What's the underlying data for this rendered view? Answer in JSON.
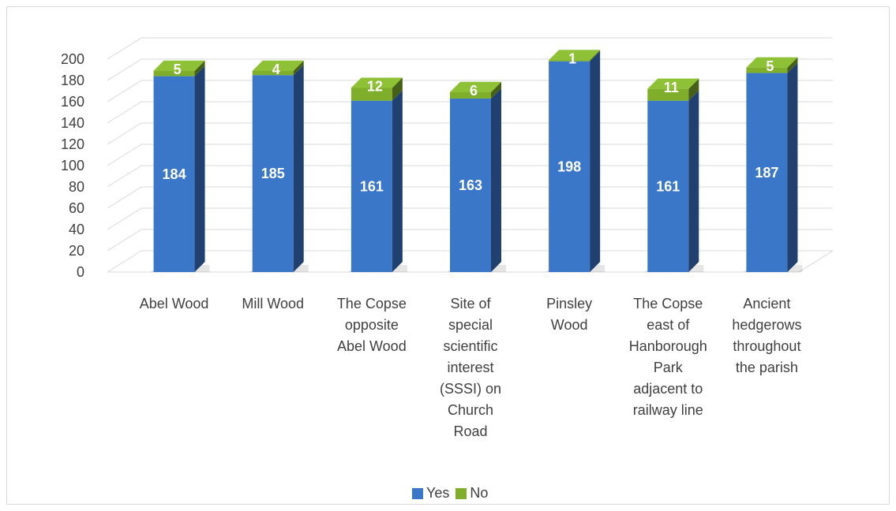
{
  "chart_data": {
    "type": "bar",
    "stacked": true,
    "three_d": true,
    "categories": [
      [
        "Abel Wood"
      ],
      [
        "Mill Wood"
      ],
      [
        "The Copse",
        "opposite",
        "Abel Wood"
      ],
      [
        "Site of",
        "special",
        "scientific",
        "interest",
        "(SSSI) on",
        "Church",
        "Road"
      ],
      [
        "Pinsley",
        "Wood"
      ],
      [
        "The Copse",
        "east of",
        "Hanborough",
        "Park",
        "adjacent to",
        "railway line"
      ],
      [
        "Ancient",
        "hedgerows",
        "throughout",
        "the parish"
      ]
    ],
    "series": [
      {
        "name": "Yes",
        "values": [
          184,
          185,
          161,
          163,
          198,
          161,
          187
        ],
        "color": "#3a77c9"
      },
      {
        "name": "No",
        "values": [
          5,
          4,
          12,
          6,
          1,
          11,
          5
        ],
        "color": "#7fae2a"
      }
    ],
    "yticks": [
      0,
      20,
      40,
      60,
      80,
      100,
      120,
      140,
      160,
      180,
      200
    ],
    "ylim": [
      0,
      200
    ],
    "grid": true,
    "legend_position": "bottom"
  },
  "legend": {
    "yes_label": "Yes",
    "no_label": "No"
  }
}
